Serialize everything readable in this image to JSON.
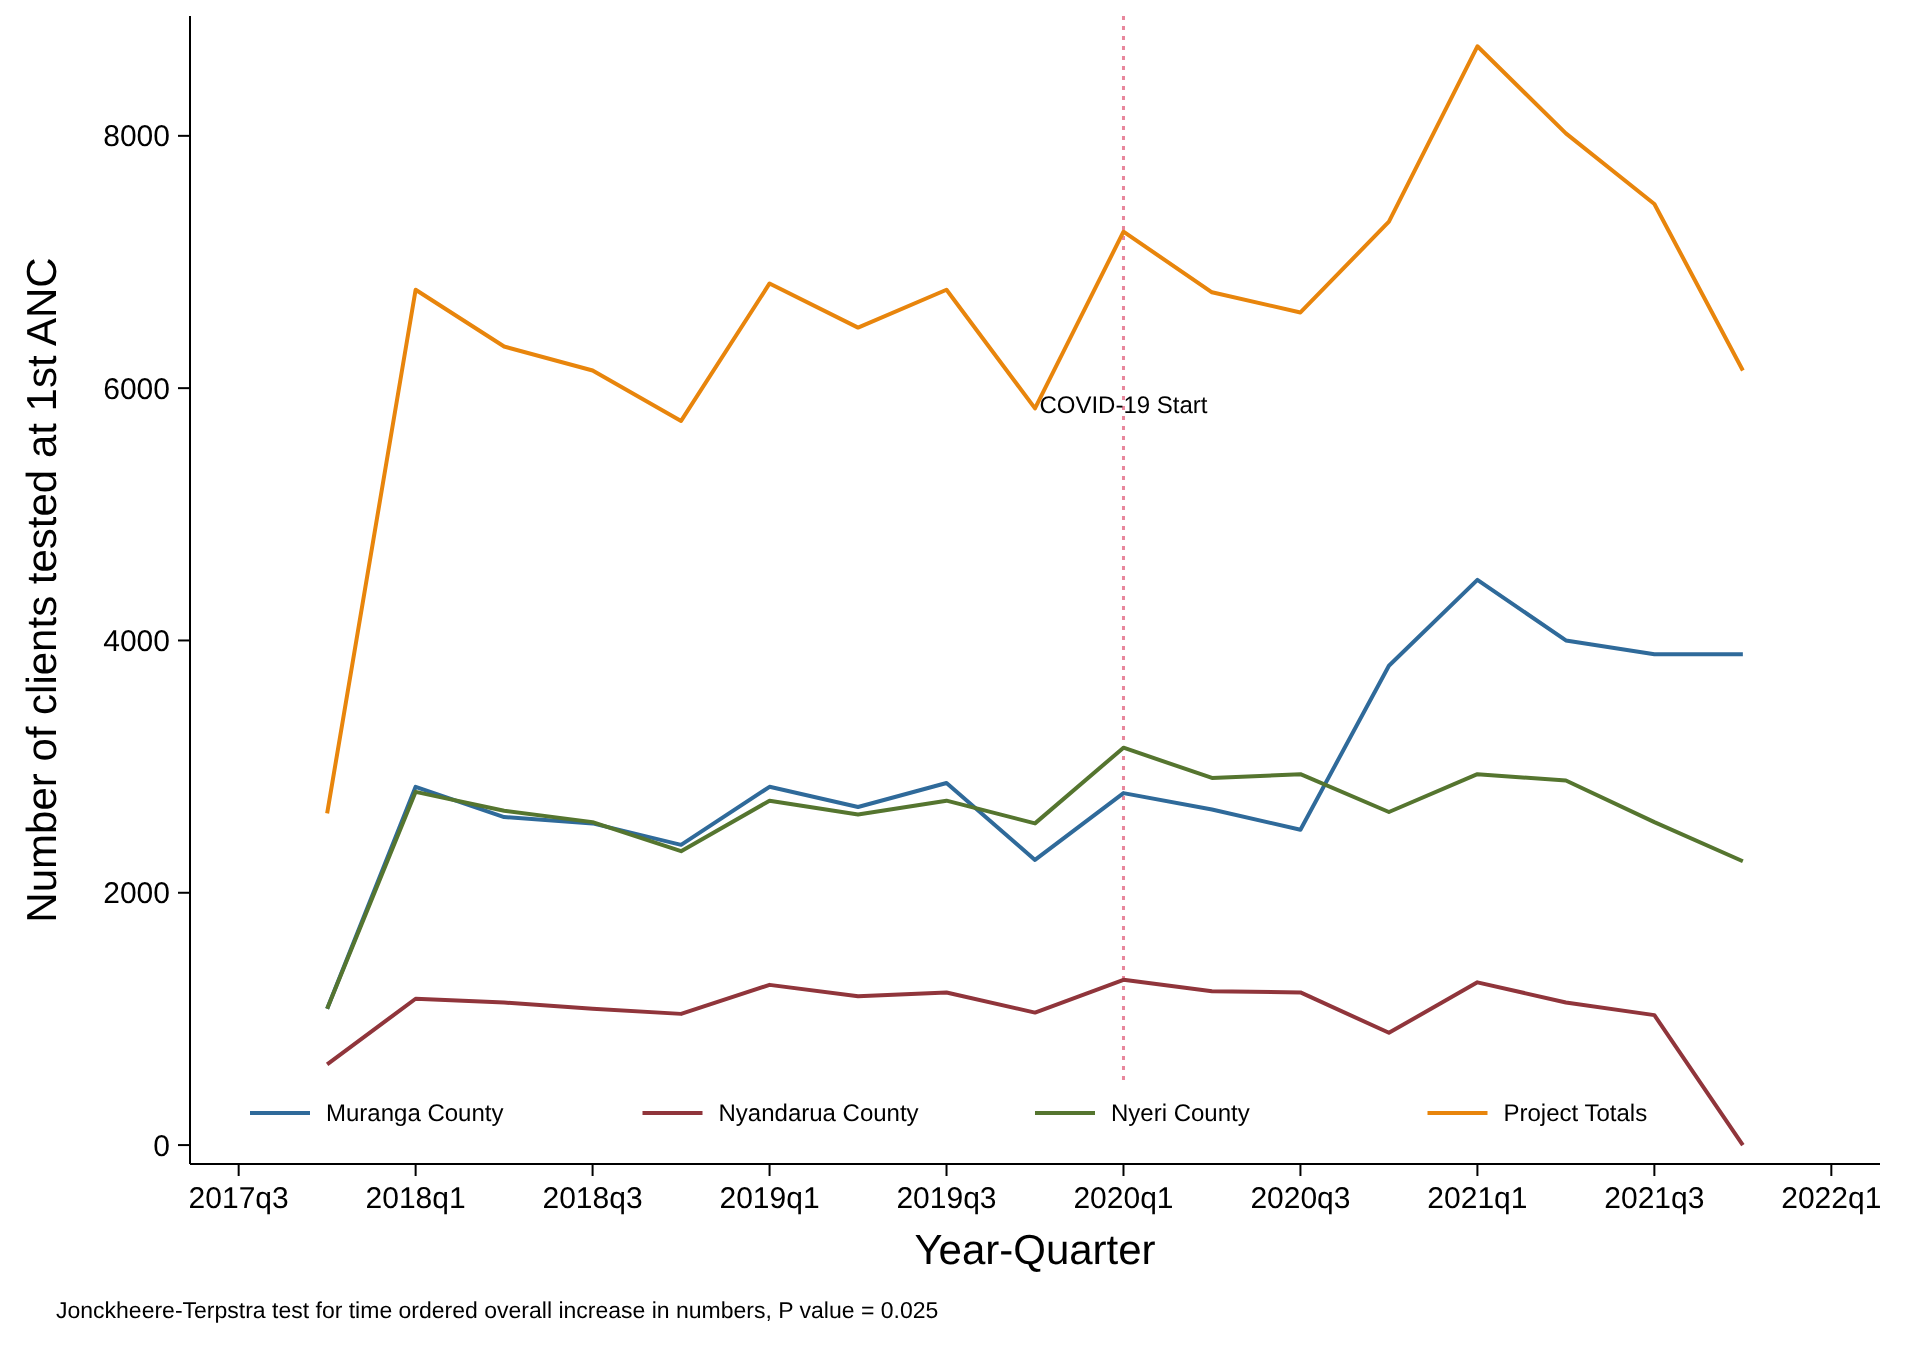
{
  "chart_data": {
    "type": "line",
    "xlabel": "Year-Quarter",
    "ylabel": "Number of clients tested at 1st ANC",
    "categories": [
      "2017q3",
      null,
      "2018q1",
      null,
      "2018q3",
      null,
      "2019q1",
      null,
      "2019q3",
      null,
      "2020q1",
      null,
      "2020q3",
      null,
      "2021q1",
      null,
      "2021q3",
      null,
      "2022q1"
    ],
    "series": [
      {
        "name": "Muranga County",
        "color": "#2f6a9a",
        "values": [
          null,
          1080,
          2840,
          2600,
          2550,
          2380,
          2840,
          2680,
          2870,
          2260,
          2790,
          2660,
          2500,
          3800,
          4480,
          4000,
          3890,
          3890,
          null
        ]
      },
      {
        "name": "Nyandarua County",
        "color": "#90353b",
        "values": [
          null,
          640,
          1160,
          1130,
          1080,
          1040,
          1270,
          1180,
          1210,
          1050,
          1310,
          1220,
          1210,
          890,
          1290,
          1130,
          1030,
          0,
          null
        ]
      },
      {
        "name": "Nyeri County",
        "color": "#55752f",
        "values": [
          null,
          1080,
          2800,
          2650,
          2560,
          2330,
          2730,
          2620,
          2730,
          2550,
          3150,
          2910,
          2940,
          2640,
          2940,
          2890,
          2560,
          2250,
          null
        ]
      },
      {
        "name": "Project Totals",
        "color": "#e8850c",
        "values": [
          null,
          2630,
          6780,
          6330,
          6140,
          5740,
          6830,
          6480,
          6780,
          5840,
          7240,
          6760,
          6600,
          7320,
          8710,
          8020,
          7460,
          6140,
          null
        ]
      }
    ],
    "ylim": [
      -150,
      8950
    ],
    "yticks": [
      0,
      2000,
      4000,
      6000,
      8000
    ],
    "ref_lines": [
      {
        "axis": "x",
        "value": "2020q1",
        "label": "COVID-19 Start",
        "color": "#e8879c",
        "line_style": "dotted"
      }
    ],
    "legend": "bottom",
    "grid": false,
    "marker": "none",
    "line_style": "solid",
    "annotations": [
      "Jonckheere-Terpstra test for time ordered overall increase in numbers, P value = 0.025"
    ]
  }
}
